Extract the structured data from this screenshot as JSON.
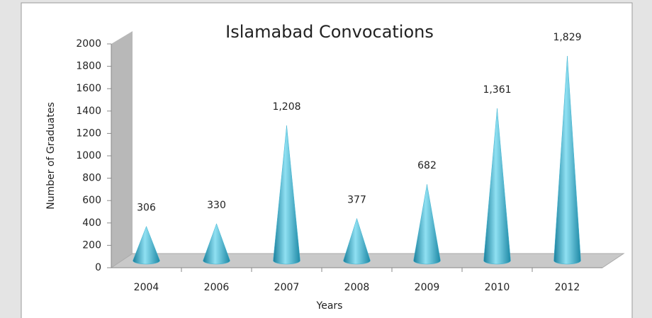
{
  "chart_data": {
    "type": "cone",
    "title": "Islamabad Convocations",
    "y_label": "Number of Graduates",
    "x_label": "Years",
    "categories": [
      "2004",
      "2006",
      "2007",
      "2008",
      "2009",
      "2010",
      "2012"
    ],
    "values": [
      306,
      330,
      1208,
      377,
      682,
      1361,
      1829
    ],
    "value_labels": [
      "306",
      "330",
      "1,208",
      "377",
      "682",
      "1,361",
      "1,829"
    ],
    "color": "#3fb3d0",
    "ylim": [
      0,
      2000
    ],
    "yticks": [
      0,
      200,
      400,
      600,
      800,
      1000,
      1200,
      1400,
      1600,
      1800,
      2000
    ]
  }
}
